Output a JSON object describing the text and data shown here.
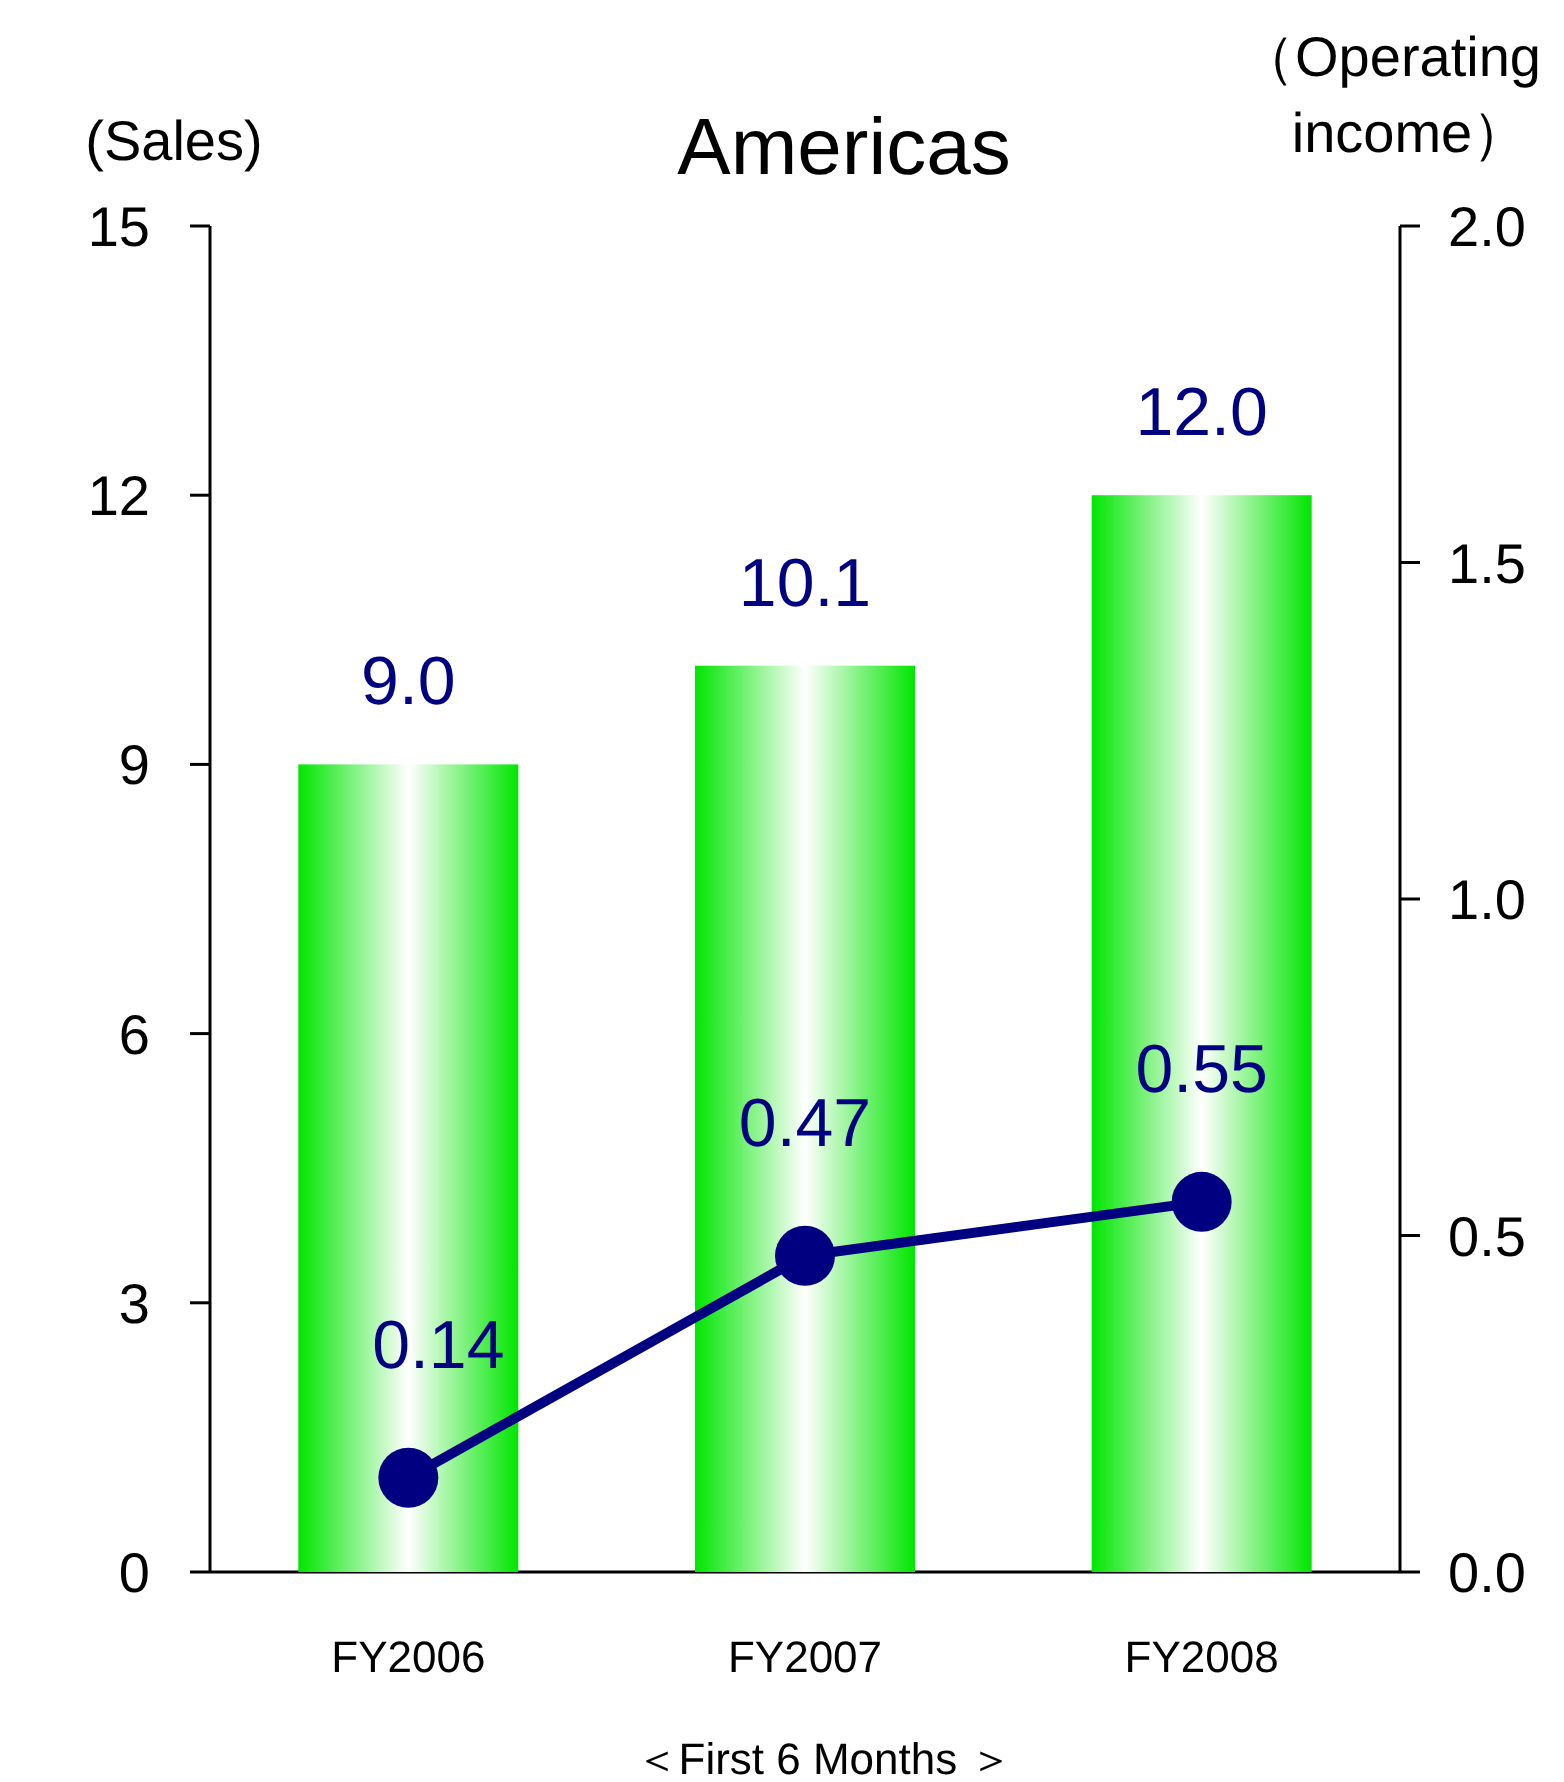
{
  "chart_data": {
    "type": "bar",
    "title": "Americas",
    "ylabel": "(Sales)",
    "y2label": "（Operating income）",
    "annotations": [
      "＜First 6 Months ＞"
    ],
    "categories": [
      "FY2006",
      "FY2007",
      "FY2008"
    ],
    "series": [
      {
        "color": "#00e600",
        "values": [
          9.0,
          10.1,
          12.0
        ],
        "value_labels": [
          "9.0",
          "10.1",
          "12.0"
        ]
      },
      {
        "type": "line",
        "axis": "y2",
        "color": "#000080",
        "values": [
          0.14,
          0.47,
          0.55
        ],
        "value_labels": [
          "0.14",
          "0.47",
          "0.55"
        ]
      }
    ],
    "ylim": [
      0,
      15
    ],
    "yticks": [
      0,
      3,
      6,
      9,
      12,
      15
    ],
    "y2lim": [
      0,
      2
    ],
    "y2ticks": [
      {
        "value": 0,
        "label": "0.0"
      },
      {
        "value": 0.5,
        "label": "0.5"
      },
      {
        "value": 1,
        "label": "1.0"
      },
      {
        "value": 1.5,
        "label": "1.5"
      },
      {
        "value": 2,
        "label": "2.0"
      }
    ],
    "marker": "circle",
    "line_style": "solid",
    "grid": false
  }
}
